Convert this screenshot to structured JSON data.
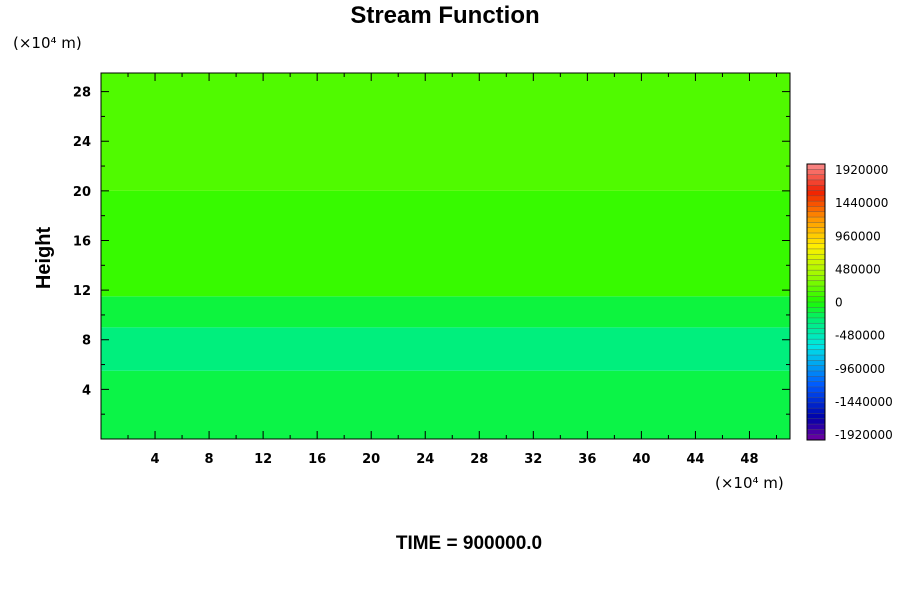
{
  "chart_data": {
    "type": "heatmap",
    "title": "Stream Function",
    "xlabel": "",
    "ylabel": "Height",
    "x_unit": "(×10⁴ m)",
    "y_unit": "(×10⁴ m)",
    "xlim": [
      0,
      51
    ],
    "ylim": [
      0,
      29.5
    ],
    "x_ticks": [
      4,
      8,
      12,
      16,
      20,
      24,
      28,
      32,
      36,
      40,
      44,
      48
    ],
    "y_ticks": [
      4,
      8,
      12,
      16,
      20,
      24,
      28
    ],
    "colorbar": {
      "labels": [
        "1920000",
        "1440000",
        "960000",
        "480000",
        "0",
        "-480000",
        "-960000",
        "-1440000",
        "-1920000"
      ],
      "min": -2080000,
      "max": 2080000
    },
    "bands": [
      {
        "y0": 0,
        "y1": 5.5,
        "value": -160000
      },
      {
        "y0": 5.5,
        "y1": 9.0,
        "value": -300000
      },
      {
        "y0": 9.0,
        "y1": 11.5,
        "value": -140000
      },
      {
        "y0": 11.5,
        "y1": 20.0,
        "value": 80000
      },
      {
        "y0": 20.0,
        "y1": 29.5,
        "value": 160000
      }
    ],
    "footer": "TIME = 900000.0"
  }
}
